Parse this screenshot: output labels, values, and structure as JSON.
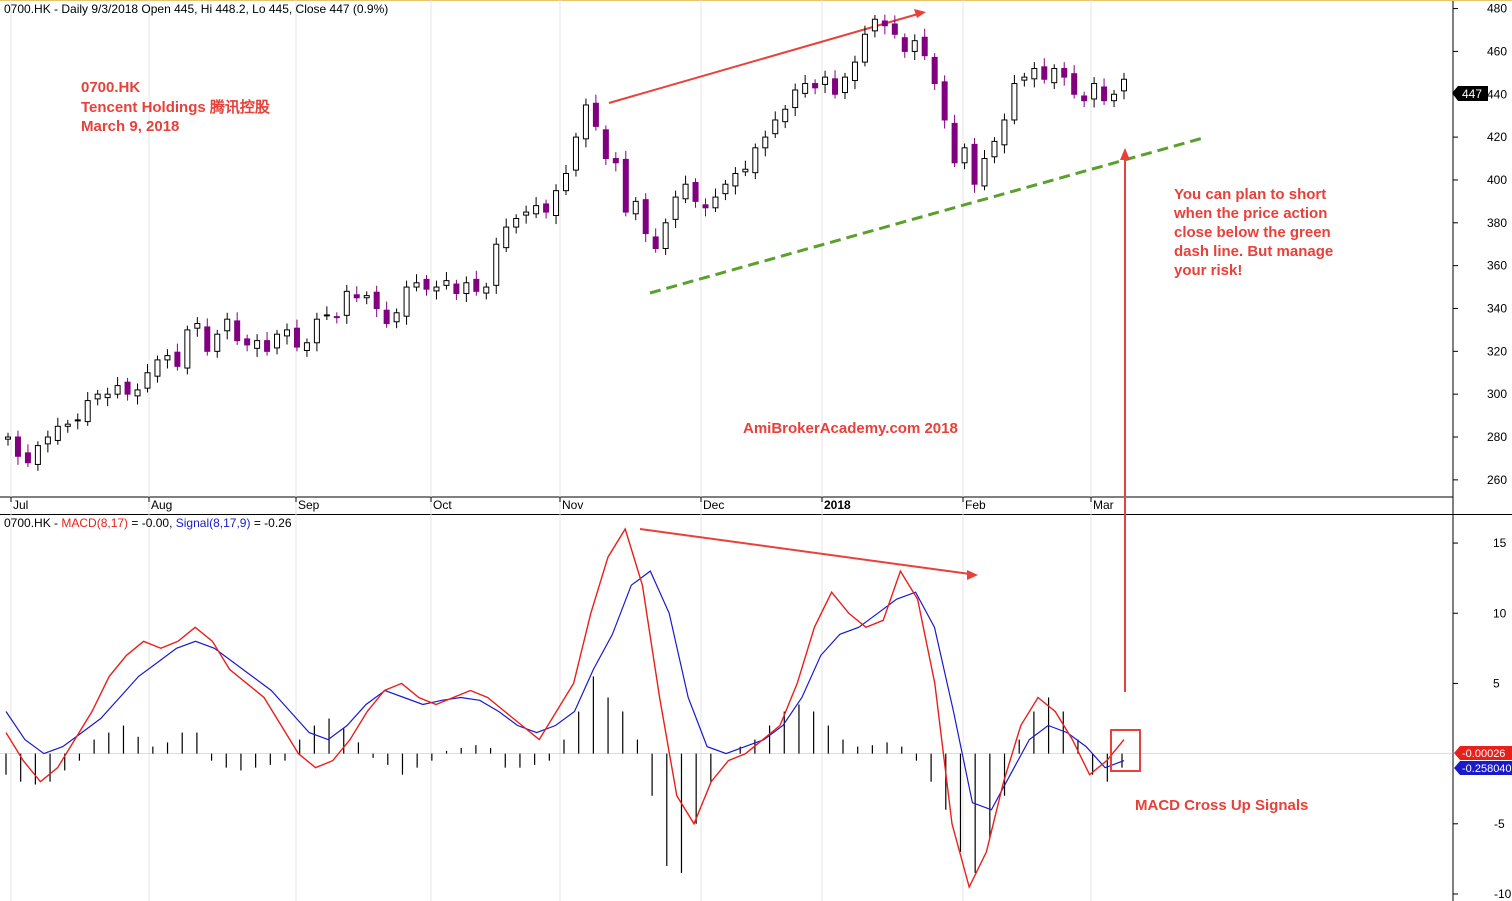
{
  "header_price": {
    "symbol": "0700.HK",
    "text": " - Daily 9/3/2018 Open 445, Hi 448.2, Lo 445, Close 447 (0.9%)"
  },
  "header_macd": {
    "symbol": "0700.HK",
    "macd_label": "MACD(8,17)",
    "macd_value": " = -0.00, ",
    "signal_label": "Signal(8,17,9)",
    "signal_value": " = -0.26"
  },
  "title_block": {
    "line1": "0700.HK",
    "line2": "Tencent Holdings 腾讯控股",
    "line3": "March 9, 2018"
  },
  "watermark": "AmiBrokerAcademy.com  2018",
  "note_lines": [
    "You can plan to short",
    "when the price action",
    "close below the green",
    "dash line. But manage",
    "your risk!"
  ],
  "macd_note": "MACD Cross Up Signals",
  "price_badge": "447",
  "macd_badges": {
    "macd": "-0.00026",
    "signal": "-0.258040"
  },
  "colors": {
    "bull": "#ffffff",
    "bear": "#800080",
    "macd_line": "#e8201c",
    "signal_line": "#1a1acc",
    "annotation": "#e8403a",
    "trendline": "#55a630"
  },
  "chart_data": [
    {
      "type": "candlestick",
      "title": "0700.HK - Daily 9/3/2018 Open 445, Hi 448.2, Lo 445, Close 447 (0.9%)",
      "x_tick_labels": [
        "Jul",
        "Aug",
        "Sep",
        "Oct",
        "Nov",
        "Dec",
        "2018",
        "Feb",
        "Mar"
      ],
      "y_ticks": [
        260,
        280,
        300,
        320,
        340,
        360,
        380,
        400,
        420,
        440,
        460,
        480
      ],
      "ylim": [
        252,
        484
      ],
      "last_close": 447,
      "approx_closes": [
        280,
        271,
        268,
        276,
        280,
        285,
        286,
        288,
        297,
        300,
        300,
        304,
        300,
        302,
        310,
        316,
        318,
        313,
        330,
        333,
        320,
        328,
        335,
        325,
        323,
        325,
        320,
        328,
        330,
        322,
        324,
        335,
        337,
        336,
        348,
        345,
        346,
        340,
        333,
        338,
        350,
        352,
        349,
        350,
        353,
        347,
        352,
        348,
        350,
        370,
        378,
        382,
        385,
        388,
        385,
        395,
        403,
        420,
        435,
        425,
        410,
        408,
        385,
        390,
        375,
        368,
        380,
        392,
        398,
        390,
        387,
        392,
        398,
        403,
        405,
        415,
        420,
        428,
        433,
        442,
        445,
        443,
        448,
        440,
        448,
        455,
        468,
        475,
        472,
        468,
        460,
        465,
        458,
        445,
        428,
        408,
        415,
        398,
        410,
        418,
        428,
        445,
        448,
        452,
        447,
        452,
        448,
        440,
        437,
        445,
        437,
        440,
        447
      ]
    },
    {
      "type": "line",
      "title": "0700.HK - MACD(8,17) = -0.00, Signal(8,17,9) = -0.26",
      "y_ticks": [
        -10,
        -5,
        5,
        10,
        15
      ],
      "ylim": [
        -10.5,
        17
      ],
      "series": [
        {
          "name": "MACD(8,17)",
          "values": [
            1.5,
            -0.5,
            -2,
            -1,
            1,
            3,
            5.5,
            7,
            8,
            7.5,
            8,
            9,
            8,
            6,
            5,
            4,
            2,
            0,
            -1,
            -0.5,
            1,
            3,
            4.5,
            5,
            4,
            3.5,
            4,
            4.5,
            4,
            3,
            2,
            1,
            3,
            5,
            10,
            14,
            16,
            12,
            4,
            -3,
            -5,
            -2,
            -0.5,
            0,
            1,
            2,
            5,
            9,
            11.5,
            10,
            9,
            9.5,
            13,
            11,
            5,
            -5,
            -9.5,
            -7,
            -2,
            2,
            4,
            3,
            1,
            -1.5,
            -0.5,
            1
          ]
        },
        {
          "name": "Signal(8,17,9)",
          "values": [
            3,
            1,
            0,
            0.5,
            1.5,
            2.5,
            4,
            5.5,
            6.5,
            7.5,
            8,
            7.5,
            6.5,
            5.5,
            4.5,
            3,
            1.5,
            1,
            2,
            3.5,
            4.5,
            4,
            3.5,
            3.8,
            4,
            3.8,
            3,
            2,
            1.5,
            2,
            3,
            6,
            8.5,
            12,
            13,
            10,
            4,
            0.5,
            0,
            0.5,
            1,
            2,
            4,
            7,
            8.5,
            9,
            10,
            11,
            11.5,
            9,
            3,
            -3.5,
            -4,
            -1.5,
            1,
            2,
            1.5,
            0.5,
            -1,
            -0.5
          ]
        }
      ],
      "histogram": [
        -1.5,
        -2,
        -2.2,
        -2,
        -1.2,
        -0.5,
        1,
        1.5,
        2,
        1.2,
        0.5,
        0.8,
        1.5,
        1.5,
        -0.5,
        -1,
        -1.2,
        -1,
        -0.8,
        -0.5,
        1,
        2,
        2.5,
        1.8,
        0.8,
        -0.3,
        -0.8,
        -1.5,
        -1,
        -0.5,
        0.2,
        0.4,
        0.6,
        0.4,
        -1,
        -1,
        -0.8,
        -0.5,
        1,
        3,
        5.5,
        4,
        3,
        1,
        -3,
        -8,
        -8.5,
        -5,
        -2,
        0,
        0.5,
        1,
        2,
        3,
        3.5,
        3,
        2,
        1,
        0.5,
        0.6,
        0.8,
        0.5,
        -0.5,
        -2,
        -4,
        -7,
        -8.5,
        -6,
        -3,
        1,
        3,
        4,
        3,
        1,
        -1.5,
        -2,
        -1
      ]
    }
  ]
}
